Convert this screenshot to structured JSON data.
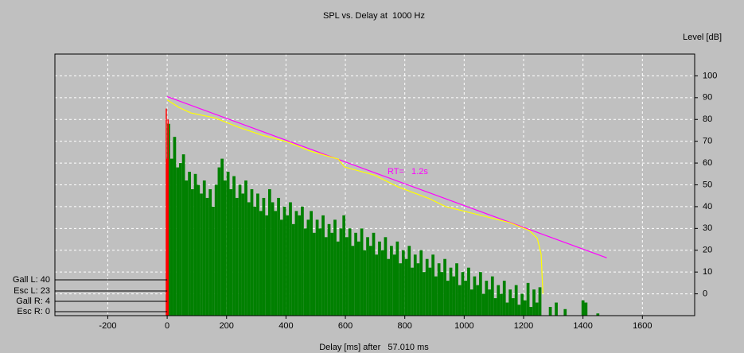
{
  "chart_data": {
    "type": "bar",
    "title": "SPL vs. Delay at  1000 Hz",
    "y_label": "Level [dB]",
    "x_label": "Delay [ms] after   57.010 ms",
    "xlim": [
      -378,
      1776
    ],
    "xticks": [
      -200,
      0,
      200,
      400,
      600,
      800,
      1000,
      1200,
      1400,
      1600
    ],
    "ylim": [
      -10,
      110
    ],
    "yticks": [
      0,
      10,
      20,
      30,
      40,
      50,
      60,
      70,
      80,
      90,
      100
    ],
    "grid": true,
    "series": [
      {
        "color": "#008000",
        "x": [
          5,
          15,
          25,
          35,
          45,
          55,
          65,
          75,
          85,
          95,
          105,
          115,
          125,
          135,
          145,
          155,
          165,
          175,
          185,
          195,
          205,
          215,
          225,
          235,
          245,
          255,
          265,
          275,
          285,
          295,
          305,
          315,
          325,
          335,
          345,
          355,
          365,
          375,
          385,
          395,
          405,
          415,
          425,
          435,
          445,
          455,
          465,
          475,
          485,
          495,
          505,
          515,
          525,
          535,
          545,
          555,
          565,
          575,
          585,
          595,
          605,
          615,
          625,
          635,
          645,
          655,
          665,
          675,
          685,
          695,
          705,
          715,
          725,
          735,
          745,
          755,
          765,
          775,
          785,
          795,
          805,
          815,
          825,
          835,
          845,
          855,
          865,
          875,
          885,
          895,
          905,
          915,
          925,
          935,
          945,
          955,
          965,
          975,
          985,
          995,
          1005,
          1015,
          1025,
          1035,
          1045,
          1055,
          1065,
          1075,
          1085,
          1095,
          1105,
          1115,
          1125,
          1135,
          1145,
          1155,
          1165,
          1175,
          1185,
          1195,
          1205,
          1215,
          1225,
          1235,
          1245,
          1255,
          1290,
          1310,
          1340,
          1400,
          1410,
          1450
        ],
        "values": [
          78,
          62,
          72,
          58,
          60,
          64,
          52,
          56,
          48,
          55,
          50,
          46,
          52,
          44,
          48,
          40,
          50,
          58,
          62,
          52,
          56,
          48,
          54,
          44,
          50,
          46,
          52,
          42,
          48,
          40,
          46,
          38,
          44,
          36,
          48,
          42,
          38,
          44,
          34,
          40,
          36,
          42,
          32,
          38,
          36,
          40,
          30,
          34,
          38,
          28,
          34,
          30,
          36,
          26,
          32,
          28,
          34,
          24,
          30,
          36,
          26,
          30,
          22,
          28,
          24,
          30,
          20,
          26,
          22,
          28,
          18,
          24,
          20,
          26,
          16,
          22,
          18,
          24,
          14,
          20,
          16,
          22,
          12,
          18,
          14,
          20,
          10,
          16,
          12,
          18,
          8,
          14,
          10,
          16,
          6,
          12,
          8,
          14,
          4,
          10,
          6,
          12,
          2,
          8,
          4,
          10,
          0,
          6,
          2,
          8,
          -2,
          4,
          0,
          6,
          -4,
          2,
          -2,
          4,
          -5,
          0,
          -3,
          5,
          -6,
          2,
          -4,
          3,
          -6,
          -4,
          -7,
          -3,
          -4,
          -9
        ]
      },
      {
        "color": "#ff0000",
        "x": [
          0,
          3,
          6
        ],
        "values": [
          85,
          62,
          80
        ]
      }
    ],
    "lines": [
      {
        "color": "#ff00ff",
        "x": [
          0,
          1480
        ],
        "values": [
          90.5,
          16.5
        ],
        "label": "RT=   1.2s"
      },
      {
        "color": "#ffff00",
        "x": [
          0,
          40,
          80,
          161,
          241,
          322,
          402,
          482,
          576,
          597,
          697,
          777,
          884,
          938,
          1045,
          1152,
          1219,
          1246,
          1259,
          1265
        ],
        "values": [
          89,
          85.5,
          83,
          80.7,
          76.4,
          72.7,
          69.8,
          65.5,
          61.8,
          58.2,
          54.5,
          49.1,
          43.6,
          40,
          36.4,
          32.7,
          29.1,
          25.5,
          18.2,
          0
        ]
      }
    ],
    "side_labels": [
      "Gall L: 40",
      "Esc L: 23",
      "Gall R: 4",
      "Esc R: 0"
    ]
  }
}
